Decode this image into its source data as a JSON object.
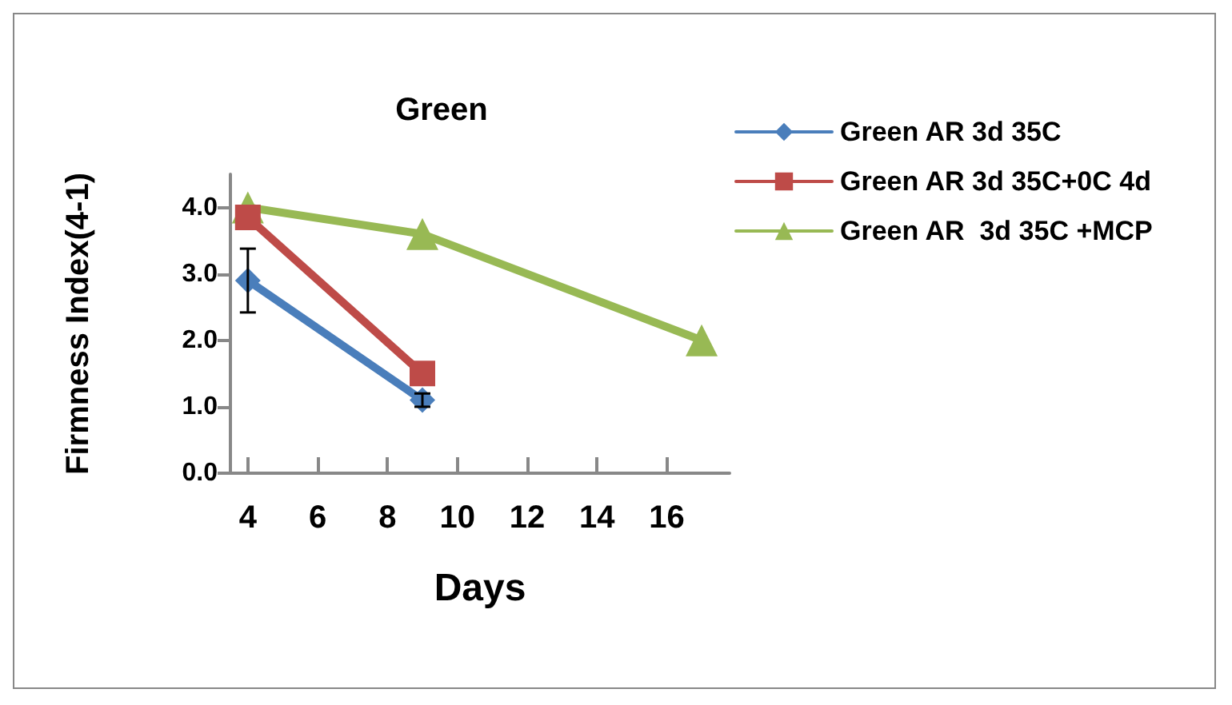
{
  "chart_data": {
    "type": "line",
    "title": "Green",
    "xlabel": "Days",
    "ylabel": "Firmness Index(4-1)",
    "xlim": [
      3.5,
      17.8
    ],
    "xticks": [
      4,
      6,
      8,
      10,
      12,
      14,
      16
    ],
    "ylim": [
      0,
      4.5
    ],
    "yticks": [
      {
        "value": 0,
        "label": "0.0"
      },
      {
        "value": 1,
        "label": "1.0"
      },
      {
        "value": 2,
        "label": "2.0"
      },
      {
        "value": 3,
        "label": "3.0"
      },
      {
        "value": 4,
        "label": "4.0"
      }
    ],
    "grid": false,
    "legend": "top right",
    "series": [
      {
        "name": "Green AR 3d 35C",
        "color": "#4a7ebb",
        "x": [
          4,
          9
        ],
        "values": [
          2.9,
          1.1
        ],
        "errors": [
          0.48,
          0.1
        ],
        "marker": "diamond"
      },
      {
        "name": "Green AR 3d 35C+0C 4d",
        "color": "#be4b48",
        "x": [
          4,
          9
        ],
        "values": [
          3.85,
          1.5
        ],
        "marker": "square"
      },
      {
        "name": "Green AR  3d 35C +MCP",
        "color": "#98b954",
        "x": [
          4,
          9,
          17
        ],
        "values": [
          4.0,
          3.6,
          2.0
        ],
        "marker": "triangle"
      }
    ]
  }
}
